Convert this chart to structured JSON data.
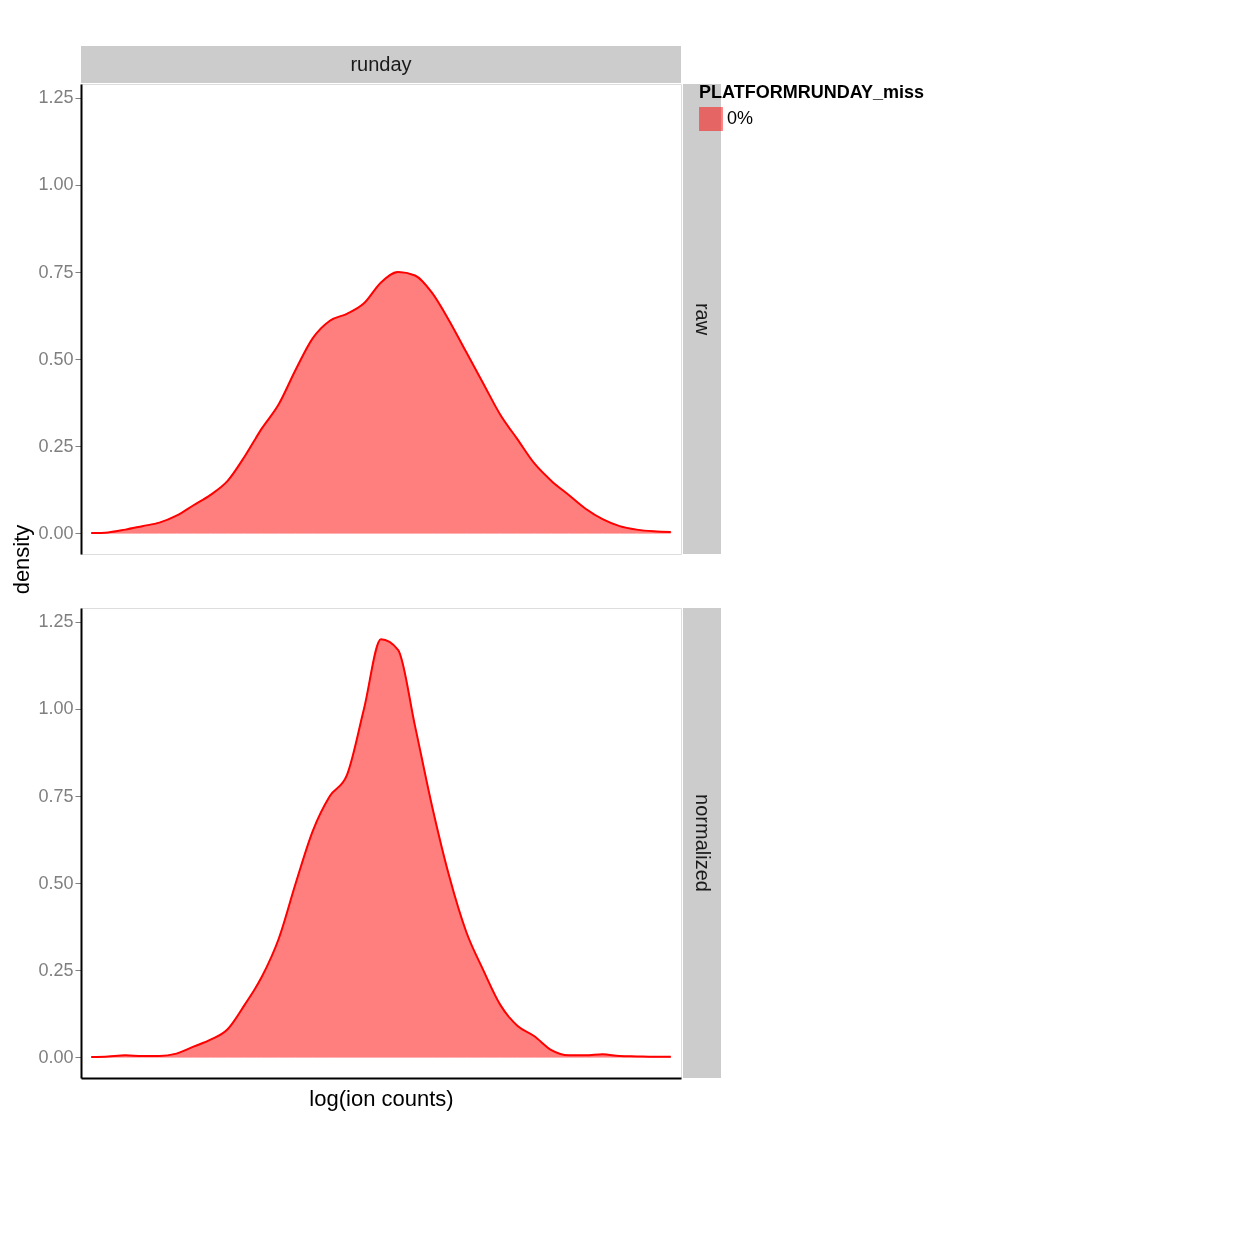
{
  "chart_data": [
    {
      "type": "area",
      "title": "runday",
      "y2label": "raw",
      "ylabel": "density",
      "legend_title": "PLATFORMRUNDAY_miss",
      "legend": "right",
      "grid": false,
      "tick_labels": "y",
      "categories": [
        null,
        null,
        null,
        null,
        null,
        null,
        null,
        null,
        null,
        null,
        null,
        null,
        null,
        null,
        null,
        null,
        null,
        null,
        null,
        null,
        null,
        null,
        null,
        null,
        null,
        null,
        null,
        null,
        null,
        null,
        null,
        null,
        null,
        null,
        null
      ],
      "ylim": [
        -0.06,
        1.29
      ],
      "yticks": [
        {
          "value": 0,
          "label": "0.00"
        },
        {
          "value": 0.25,
          "label": "0.25"
        },
        {
          "value": 0.5,
          "label": "0.50"
        },
        {
          "value": 0.75,
          "label": "0.75"
        },
        {
          "value": 1,
          "label": "1.00"
        },
        {
          "value": 1.25,
          "label": "1.25"
        }
      ],
      "series": [
        {
          "name": "0%",
          "color": "#ff0000",
          "values": [
            0,
            0.002,
            0.01,
            0.02,
            0.03,
            0.05,
            0.08,
            0.11,
            0.15,
            0.22,
            0.3,
            0.37,
            0.47,
            0.56,
            0.61,
            0.63,
            0.66,
            0.72,
            0.75,
            0.74,
            0.69,
            0.61,
            0.52,
            0.43,
            0.34,
            0.27,
            0.2,
            0.15,
            0.11,
            0.07,
            0.04,
            0.02,
            0.01,
            0.005,
            0.003
          ]
        }
      ]
    },
    {
      "type": "area",
      "y2label": "normalized",
      "xlabel": "log(ion counts)",
      "grid": false,
      "tick_labels": "y",
      "categories": [
        null,
        null,
        null,
        null,
        null,
        null,
        null,
        null,
        null,
        null,
        null,
        null,
        null,
        null,
        null,
        null,
        null,
        null,
        null,
        null,
        null,
        null,
        null,
        null,
        null,
        null,
        null,
        null,
        null,
        null,
        null,
        null,
        null,
        null,
        null
      ],
      "ylim": [
        -0.06,
        1.29
      ],
      "yticks": [
        {
          "value": 0,
          "label": "0.00"
        },
        {
          "value": 0.25,
          "label": "0.25"
        },
        {
          "value": 0.5,
          "label": "0.50"
        },
        {
          "value": 0.75,
          "label": "0.75"
        },
        {
          "value": 1,
          "label": "1.00"
        },
        {
          "value": 1.25,
          "label": "1.25"
        }
      ],
      "series": [
        {
          "color": "#ff0000",
          "values": [
            0,
            0.002,
            0.005,
            0.003,
            0.003,
            0.01,
            0.03,
            0.05,
            0.08,
            0.15,
            0.23,
            0.34,
            0.5,
            0.65,
            0.75,
            0.81,
            1.0,
            1.2,
            1.17,
            0.95,
            0.72,
            0.52,
            0.36,
            0.25,
            0.15,
            0.09,
            0.06,
            0.02,
            0.005,
            0.005,
            0.008,
            0.003,
            0.002,
            0.001,
            0.001
          ]
        }
      ]
    }
  ]
}
